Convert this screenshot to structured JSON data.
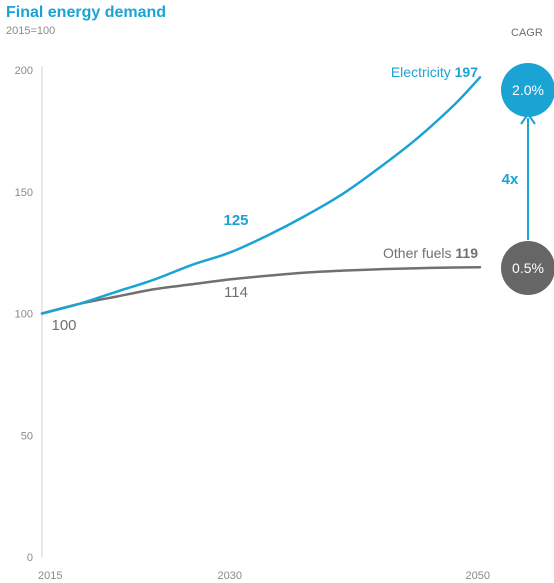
{
  "chart_data": {
    "type": "line",
    "title": "Final energy demand",
    "subtitle": "2015=100",
    "xlim": [
      2015,
      2050
    ],
    "ylim": [
      0,
      200
    ],
    "x_ticks": [
      "2015",
      "2030",
      "2050"
    ],
    "y_ticks": [
      "0",
      "50",
      "100",
      "150",
      "200"
    ],
    "series": [
      {
        "name": "Electricity",
        "end_value_label": "197",
        "color": "#1ba3d4",
        "x": [
          2015,
          2018,
          2021,
          2024,
          2027,
          2030,
          2033,
          2036,
          2039,
          2042,
          2045,
          2048,
          2050
        ],
        "y": [
          100,
          104,
          109,
          114,
          120,
          125,
          132,
          140,
          149,
          160,
          172,
          186,
          197
        ]
      },
      {
        "name": "Other fuels",
        "end_value_label": "119",
        "color": "#707070",
        "x": [
          2015,
          2018,
          2021,
          2024,
          2027,
          2030,
          2033,
          2036,
          2039,
          2042,
          2045,
          2048,
          2050
        ],
        "y": [
          100,
          104,
          107,
          110,
          112,
          114,
          115.5,
          116.8,
          117.6,
          118.2,
          118.6,
          118.9,
          119
        ]
      }
    ],
    "annotations": [
      {
        "text": "125",
        "x": 2030,
        "y": 125,
        "color": "#1ba3d4"
      },
      {
        "text": "114",
        "x": 2030,
        "y": 114,
        "color": "#707070"
      },
      {
        "text": "100",
        "x": 2015,
        "y": 100,
        "color": "#707070"
      }
    ],
    "cagr": {
      "title": "CAGR",
      "electricity": "2.0%",
      "other_fuels": "0.5%",
      "ratio": "4x",
      "electricity_color": "#1ba3d4",
      "other_fuels_color": "#666666"
    }
  }
}
